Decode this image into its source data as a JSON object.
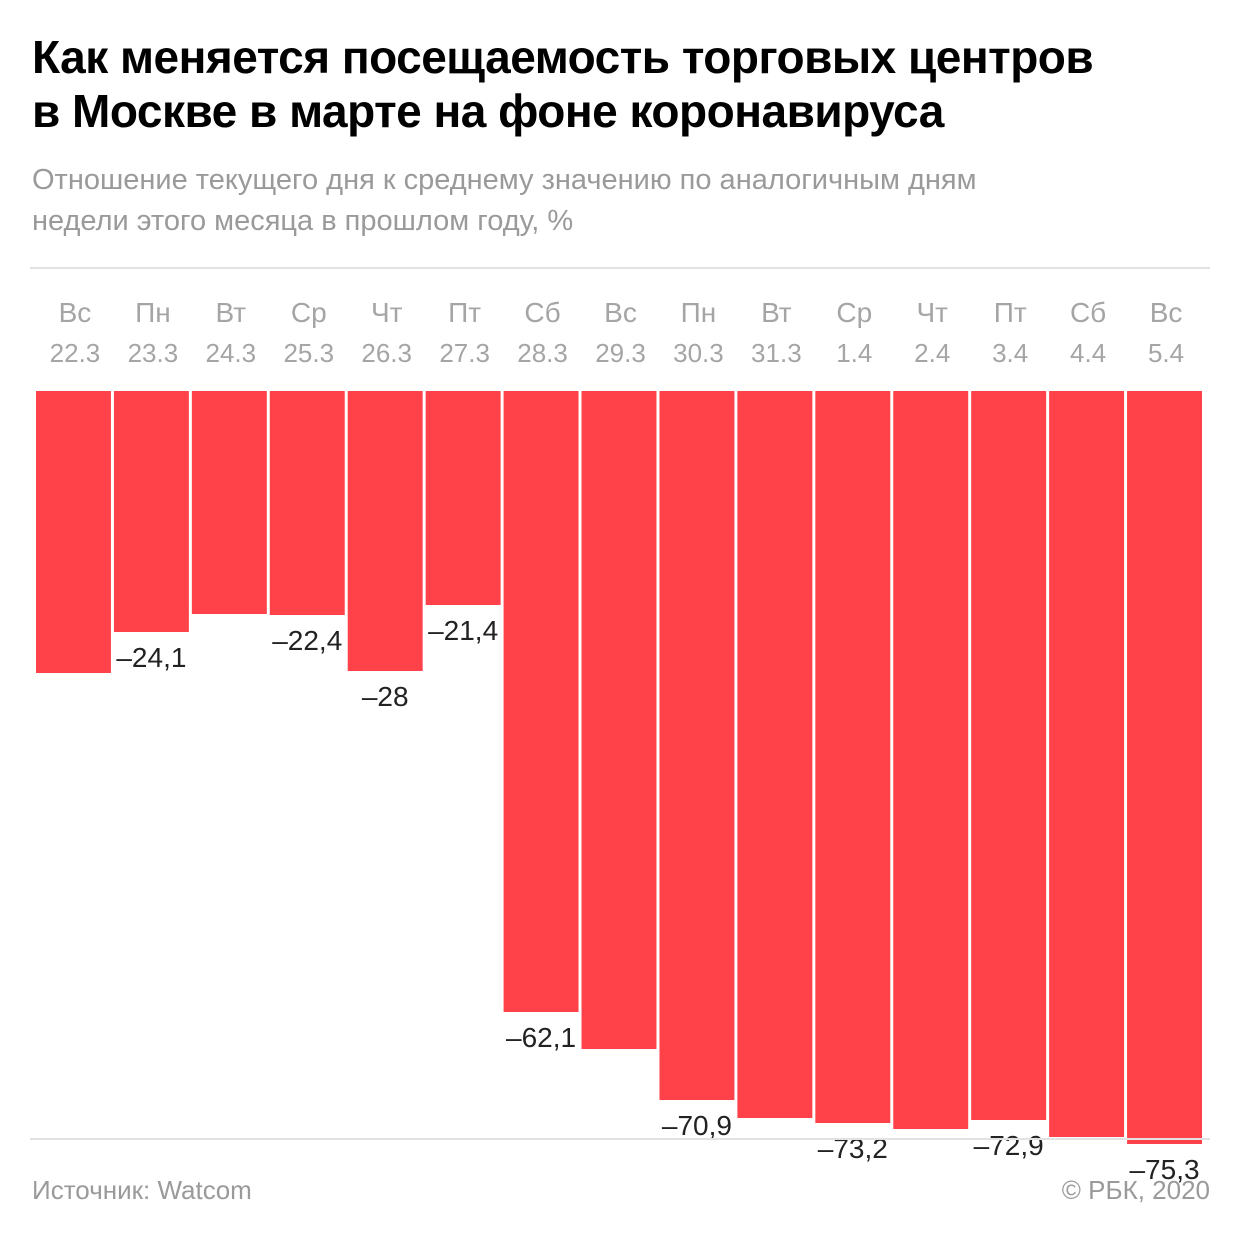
{
  "title": {
    "line1": "Как меняется посещаемость торговых центров",
    "line2": "в Москве в марте на фоне коронавируса"
  },
  "subtitle": {
    "line1": "Отношение текущего дня к среднему значению по аналогичным дням",
    "line2": "недели этого месяца в прошлом году, %"
  },
  "source": "Источник: Watcom",
  "copyright": "© РБК, 2020",
  "colors": {
    "bar": "#ff4149",
    "label": "#222222",
    "axis_text": "#a5a5a5"
  },
  "chart_data": {
    "type": "bar",
    "categories": [
      {
        "day": "Вс",
        "date": "22.3"
      },
      {
        "day": "Пн",
        "date": "23.3"
      },
      {
        "day": "Вт",
        "date": "24.3"
      },
      {
        "day": "Ср",
        "date": "25.3"
      },
      {
        "day": "Чт",
        "date": "26.3"
      },
      {
        "day": "Пт",
        "date": "27.3"
      },
      {
        "day": "Сб",
        "date": "28.3"
      },
      {
        "day": "Вс",
        "date": "29.3"
      },
      {
        "day": "Пн",
        "date": "30.3"
      },
      {
        "day": "Вт",
        "date": "31.3"
      },
      {
        "day": "Ср",
        "date": "1.4"
      },
      {
        "day": "Чт",
        "date": "2.4"
      },
      {
        "day": "Пт",
        "date": "3.4"
      },
      {
        "day": "Сб",
        "date": "4.4"
      },
      {
        "day": "Вс",
        "date": "5.4"
      }
    ],
    "values": [
      -28.2,
      -24.1,
      -22.3,
      -22.4,
      -28,
      -21.4,
      -62.1,
      -65.8,
      -70.9,
      -72.7,
      -73.2,
      -73.8,
      -72.9,
      -74.6,
      -75.3
    ],
    "data_labels": [
      "",
      "–24,1",
      "",
      "–22,4",
      "–28",
      "–21,4",
      "–62,1",
      "",
      "–70,9",
      "",
      "–73,2",
      "",
      "–72,9",
      "",
      "–75,3"
    ],
    "ylim": [
      -80,
      0
    ],
    "grid": false,
    "legend": "none"
  }
}
